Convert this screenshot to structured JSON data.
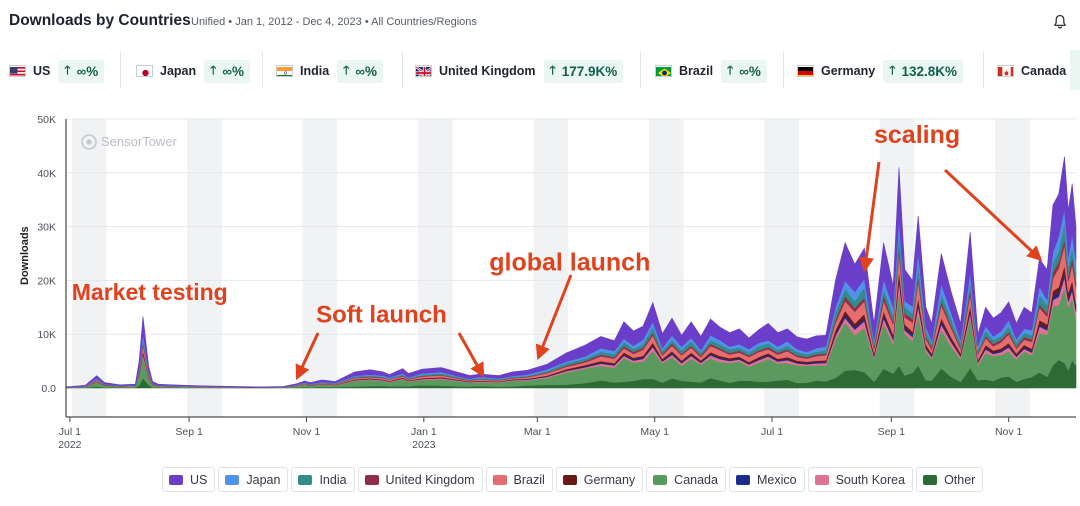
{
  "header": {
    "title": "Downloads by Countries",
    "subtitle": "Unified • Jan 1, 2012 - Dec 4, 2023 • All Countries/Regions",
    "bell_icon": "bell-icon"
  },
  "countries": [
    {
      "name": "US",
      "growth": "∞%",
      "flag": "us-flag-icon"
    },
    {
      "name": "Japan",
      "growth": "∞%",
      "flag": "japan-flag-icon"
    },
    {
      "name": "India",
      "growth": "∞%",
      "flag": "india-flag-icon"
    },
    {
      "name": "United Kingdom",
      "growth": "177.9K%",
      "flag": "uk-flag-icon"
    },
    {
      "name": "Brazil",
      "growth": "∞%",
      "flag": "brazil-flag-icon"
    },
    {
      "name": "Germany",
      "growth": "132.8K%",
      "flag": "germany-flag-icon"
    },
    {
      "name": "Canada",
      "growth": "",
      "flag": "canada-flag-icon"
    }
  ],
  "watermark": "SensorTower",
  "chart_data": {
    "type": "area",
    "stacked": true,
    "ylabel": "Downloads",
    "ylim": [
      0,
      50000
    ],
    "yticks": [
      {
        "value": 0,
        "label": "0.0"
      },
      {
        "value": 10000,
        "label": "10K"
      },
      {
        "value": 20000,
        "label": "20K"
      },
      {
        "value": 30000,
        "label": "30K"
      },
      {
        "value": 40000,
        "label": "40K"
      },
      {
        "value": 50000,
        "label": "50K"
      }
    ],
    "xrange_days": [
      0,
      160
    ],
    "xticks": [
      {
        "day": 2,
        "label": "Jul 1",
        "sublabel": "2022"
      },
      {
        "day": 64,
        "label": "Sep 1",
        "sublabel": ""
      },
      {
        "day": 125,
        "label": "Nov 1",
        "sublabel": ""
      },
      {
        "day": 186,
        "label": "Jan 1",
        "sublabel": "2023"
      },
      {
        "day": 245,
        "label": "Mar 1",
        "sublabel": ""
      },
      {
        "day": 306,
        "label": "May 1",
        "sublabel": ""
      },
      {
        "day": 367,
        "label": "Jul 1",
        "sublabel": ""
      },
      {
        "day": 429,
        "label": "Sep 1",
        "sublabel": ""
      },
      {
        "day": 490,
        "label": "Nov 1",
        "sublabel": ""
      }
    ],
    "x_span_days": 525,
    "grid": true,
    "legend_position": "bottom",
    "stack_order": [
      "Other",
      "Canada",
      "South Korea",
      "Mexico",
      "Germany",
      "Brazil",
      "United Kingdom",
      "India",
      "Japan",
      "US"
    ],
    "total": {
      "day": [
        0,
        10,
        16,
        20,
        24,
        28,
        36,
        38,
        40,
        43,
        45,
        48,
        55,
        70,
        100,
        113,
        120,
        124,
        127,
        133,
        140,
        150,
        158,
        165,
        168,
        175,
        178,
        185,
        195,
        205,
        210,
        215,
        225,
        232,
        240,
        250,
        260,
        270,
        278,
        285,
        290,
        295,
        300,
        305,
        310,
        315,
        320,
        325,
        330,
        335,
        340,
        345,
        350,
        355,
        360,
        365,
        370,
        375,
        380,
        385,
        390,
        395,
        400,
        405,
        410,
        415,
        420,
        425,
        430,
        433,
        436,
        440,
        443,
        447,
        450,
        455,
        460,
        465,
        470,
        474,
        478,
        482,
        486,
        490,
        494,
        498,
        502,
        506,
        510,
        513,
        516,
        519,
        521,
        523,
        525
      ],
      "value": [
        200,
        500,
        2300,
        1000,
        800,
        600,
        700,
        5000,
        13300,
        4000,
        1200,
        700,
        600,
        400,
        200,
        300,
        800,
        1300,
        1000,
        1500,
        1200,
        3000,
        3400,
        3000,
        2500,
        3600,
        2700,
        3500,
        3800,
        2800,
        2300,
        2600,
        2300,
        3000,
        3300,
        4400,
        6500,
        8000,
        9600,
        8800,
        12300,
        10600,
        11500,
        15900,
        10100,
        13000,
        9800,
        12300,
        9600,
        12800,
        11300,
        10300,
        11000,
        9300,
        10800,
        12000,
        10300,
        11000,
        9500,
        9100,
        9700,
        9800,
        20000,
        27000,
        23000,
        26000,
        12000,
        27000,
        19000,
        41000,
        22000,
        20000,
        32000,
        15000,
        12000,
        25000,
        18000,
        12000,
        29000,
        10000,
        15000,
        13000,
        14000,
        16000,
        12000,
        15000,
        14000,
        24000,
        22000,
        34000,
        36000,
        43000,
        33000,
        38000,
        30000
      ]
    },
    "series": [
      {
        "name": "US",
        "color": "#6a3ec8",
        "share": 0.24
      },
      {
        "name": "Japan",
        "color": "#4f93e8",
        "share": 0.06
      },
      {
        "name": "India",
        "color": "#358a8a",
        "share": 0.06
      },
      {
        "name": "United Kingdom",
        "color": "#8e2f4a",
        "share": 0.03
      },
      {
        "name": "Brazil",
        "color": "#e46e6e",
        "share": 0.08
      },
      {
        "name": "Germany",
        "color": "#6b1a1a",
        "share": 0.03
      },
      {
        "name": "Canada",
        "color": "#5b9a5e",
        "share": 0.32
      },
      {
        "name": "Mexico",
        "color": "#1d2c8a",
        "share": 0.02
      },
      {
        "name": "South Korea",
        "color": "#e0738f",
        "share": 0.04
      },
      {
        "name": "Other",
        "color": "#2d6b35",
        "share": 0.12
      }
    ],
    "annotations": [
      {
        "text": "Market testing",
        "day": 3,
        "value": 16400,
        "arrow_to_day": null,
        "arrow_to_value": null
      },
      {
        "text": "Soft launch",
        "day": 130,
        "value": 12200,
        "arrow_to_day": 117,
        "arrow_to_value": 1800
      },
      {
        "text": "global launch",
        "day": 220,
        "value": 21800,
        "arrow_to_day": 240,
        "arrow_to_value": 6300
      },
      {
        "text": "scaling",
        "day": 420,
        "value": 45500,
        "arrow_to_day": 418,
        "arrow_to_value": 23500
      }
    ]
  },
  "legend": [
    {
      "name": "US",
      "color": "#6a3ec8"
    },
    {
      "name": "Japan",
      "color": "#4f93e8"
    },
    {
      "name": "India",
      "color": "#358a8a"
    },
    {
      "name": "United Kingdom",
      "color": "#8e2f4a"
    },
    {
      "name": "Brazil",
      "color": "#e46e6e"
    },
    {
      "name": "Germany",
      "color": "#6b1a1a"
    },
    {
      "name": "Canada",
      "color": "#5b9a5e"
    },
    {
      "name": "Mexico",
      "color": "#1d2c8a"
    },
    {
      "name": "South Korea",
      "color": "#e0738f"
    },
    {
      "name": "Other",
      "color": "#2d6b35"
    }
  ]
}
